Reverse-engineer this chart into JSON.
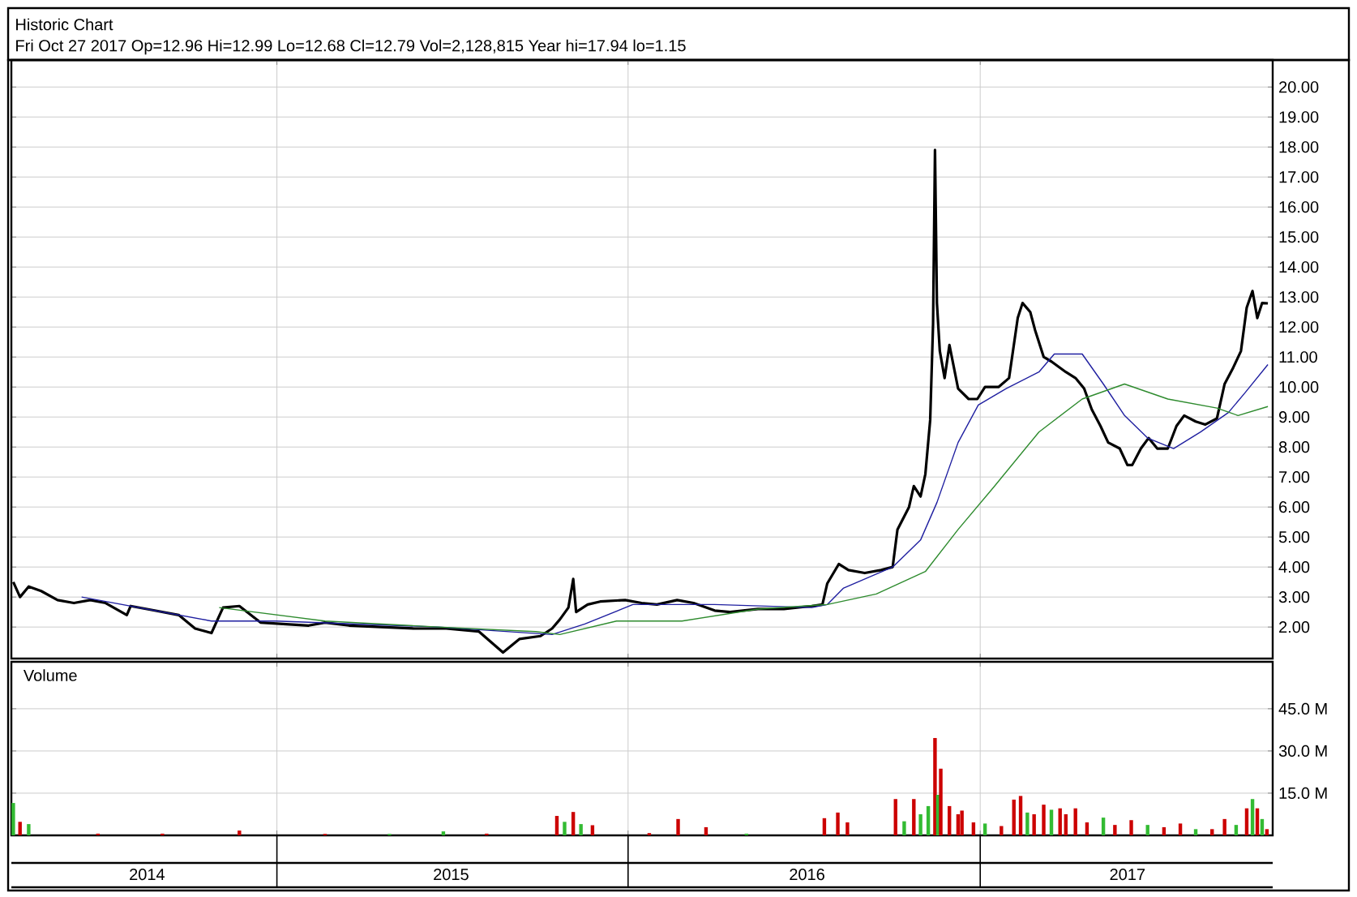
{
  "chart_data": [
    {
      "type": "line",
      "title": "Historic Chart",
      "subtitle": "Fri Oct 27 2017  Op=12.96  Hi=12.99  Lo=12.68  Cl=12.79  Vol=2,128,815  Year hi=17.94  lo=1.15",
      "xlim": [
        "2014-03-31",
        "2017-11-01"
      ],
      "ylim": [
        0.95,
        20.9
      ],
      "xticks": [
        {
          "value": "2015-01-01",
          "label": null
        },
        {
          "value": "2016-01-01",
          "label": null
        },
        {
          "value": "2017-01-01",
          "label": null
        }
      ],
      "yticks": [
        {
          "value": 2,
          "label": "2.00"
        },
        {
          "value": 3,
          "label": "3.00"
        },
        {
          "value": 4,
          "label": "4.00"
        },
        {
          "value": 5,
          "label": "5.00"
        },
        {
          "value": 6,
          "label": "6.00"
        },
        {
          "value": 7,
          "label": "7.00"
        },
        {
          "value": 8,
          "label": "8.00"
        },
        {
          "value": 9,
          "label": "9.00"
        },
        {
          "value": 10,
          "label": "10.00"
        },
        {
          "value": 11,
          "label": "11.00"
        },
        {
          "value": 12,
          "label": "12.00"
        },
        {
          "value": 13,
          "label": "13.00"
        },
        {
          "value": 14,
          "label": "14.00"
        },
        {
          "value": 15,
          "label": "15.00"
        },
        {
          "value": 16,
          "label": "16.00"
        },
        {
          "value": 17,
          "label": "17.00"
        },
        {
          "value": 18,
          "label": "18.00"
        },
        {
          "value": 19,
          "label": "19.00"
        },
        {
          "value": 20,
          "label": "20.00"
        }
      ],
      "tick_labels": "y",
      "grid": true,
      "series": [
        {
          "color": "#000000",
          "x": [
            "2014-04-02",
            "2014-04-09",
            "2014-04-18",
            "2014-05-01",
            "2014-05-18",
            "2014-06-04",
            "2014-06-21",
            "2014-07-07",
            "2014-07-29",
            "2014-08-02",
            "2014-08-27",
            "2014-09-21",
            "2014-10-08",
            "2014-10-25",
            "2014-11-06",
            "2014-11-23",
            "2014-12-15",
            "2015-01-09",
            "2015-02-03",
            "2015-02-20",
            "2015-03-17",
            "2015-04-20",
            "2015-05-24",
            "2015-06-26",
            "2015-07-30",
            "2015-08-24",
            "2015-09-10",
            "2015-10-02",
            "2015-10-14",
            "2015-10-22",
            "2015-10-31",
            "2015-11-05",
            "2015-11-08",
            "2015-11-20",
            "2015-12-03",
            "2015-12-29",
            "2016-01-15",
            "2016-01-31",
            "2016-02-21",
            "2016-03-09",
            "2016-03-31",
            "2016-04-16",
            "2016-05-15",
            "2016-06-11",
            "2016-07-10",
            "2016-07-21",
            "2016-07-26",
            "2016-08-07",
            "2016-08-17",
            "2016-09-03",
            "2016-09-20",
            "2016-10-02",
            "2016-10-07",
            "2016-10-19",
            "2016-10-24",
            "2016-10-31",
            "2016-11-05",
            "2016-11-10",
            "2016-11-13",
            "2016-11-15",
            "2016-11-17",
            "2016-11-20",
            "2016-11-25",
            "2016-11-30",
            "2016-12-09",
            "2016-12-20",
            "2016-12-29",
            "2017-01-06",
            "2017-01-20",
            "2017-01-31",
            "2017-02-09",
            "2017-02-14",
            "2017-02-22",
            "2017-02-27",
            "2017-03-08",
            "2017-03-16",
            "2017-03-31",
            "2017-04-10",
            "2017-04-19",
            "2017-04-27",
            "2017-05-06",
            "2017-05-14",
            "2017-05-26",
            "2017-06-03",
            "2017-06-08",
            "2017-06-17",
            "2017-06-25",
            "2017-07-04",
            "2017-07-15",
            "2017-07-24",
            "2017-08-01",
            "2017-08-13",
            "2017-08-23",
            "2017-09-04",
            "2017-09-12",
            "2017-09-21",
            "2017-09-29",
            "2017-10-05",
            "2017-10-11",
            "2017-10-16",
            "2017-10-21",
            "2017-10-27"
          ],
          "values": [
            3.5,
            3.0,
            3.35,
            3.2,
            2.9,
            2.8,
            2.9,
            2.8,
            2.4,
            2.7,
            2.55,
            2.4,
            1.95,
            1.8,
            2.65,
            2.7,
            2.15,
            2.1,
            2.05,
            2.15,
            2.05,
            2.0,
            1.95,
            1.95,
            1.85,
            1.15,
            1.6,
            1.7,
            1.95,
            2.25,
            2.65,
            3.6,
            2.5,
            2.75,
            2.85,
            2.9,
            2.8,
            2.75,
            2.9,
            2.8,
            2.55,
            2.5,
            2.6,
            2.6,
            2.7,
            2.75,
            3.45,
            4.1,
            3.9,
            3.8,
            3.9,
            4.0,
            5.25,
            6.0,
            6.7,
            6.35,
            7.1,
            8.9,
            12.1,
            17.9,
            12.8,
            11.2,
            10.3,
            11.4,
            9.95,
            9.6,
            9.6,
            10.0,
            10.0,
            10.3,
            12.3,
            12.8,
            12.5,
            11.9,
            11.0,
            10.85,
            10.5,
            10.3,
            9.95,
            9.25,
            8.7,
            8.15,
            7.95,
            7.4,
            7.4,
            7.95,
            8.3,
            7.95,
            7.95,
            8.7,
            9.05,
            8.85,
            8.75,
            8.95,
            10.1,
            10.65,
            11.2,
            12.65,
            13.2,
            12.3,
            12.8,
            12.79
          ]
        },
        {
          "color": "#1f1fa0",
          "x": [
            "2014-06-12",
            "2014-10-25",
            "2014-12-31",
            "2015-06-18",
            "2015-10-14",
            "2015-11-17",
            "2016-01-06",
            "2016-02-09",
            "2016-03-31",
            "2016-07-10",
            "2016-07-26",
            "2016-08-12",
            "2016-10-02",
            "2016-10-31",
            "2016-11-17",
            "2016-12-09",
            "2016-12-30",
            "2017-01-28",
            "2017-03-03",
            "2017-03-19",
            "2017-04-17",
            "2017-05-09",
            "2017-05-31",
            "2017-06-24",
            "2017-07-21",
            "2017-08-18",
            "2017-09-16",
            "2017-10-03",
            "2017-10-27"
          ],
          "values": [
            3.0,
            2.2,
            2.2,
            2.0,
            1.75,
            2.1,
            2.75,
            2.75,
            2.75,
            2.65,
            2.75,
            3.3,
            4.0,
            4.9,
            6.15,
            8.15,
            9.4,
            9.95,
            10.5,
            11.1,
            11.1,
            10.1,
            9.05,
            8.3,
            7.95,
            8.5,
            9.15,
            9.8,
            10.75
          ]
        },
        {
          "color": "#2e8b2e",
          "x": [
            "2014-11-02",
            "2015-02-20",
            "2015-06-18",
            "2015-09-27",
            "2015-10-22",
            "2015-12-20",
            "2016-02-26",
            "2016-05-15",
            "2016-07-26",
            "2016-09-15",
            "2016-11-05",
            "2016-12-09",
            "2017-01-16",
            "2017-03-03",
            "2017-04-17",
            "2017-05-31",
            "2017-07-15",
            "2017-09-04",
            "2017-09-26",
            "2017-10-27"
          ],
          "values": [
            2.65,
            2.2,
            2.0,
            1.85,
            1.75,
            2.2,
            2.2,
            2.6,
            2.75,
            3.1,
            3.85,
            5.25,
            6.7,
            8.5,
            9.6,
            10.1,
            9.6,
            9.3,
            9.05,
            9.35
          ]
        }
      ]
    },
    {
      "type": "bar",
      "title": "Volume",
      "xlim": [
        "2014-03-31",
        "2017-11-01"
      ],
      "ylim": [
        0,
        61.7
      ],
      "xticks": [
        {
          "value": "2015-01-01",
          "label": null
        },
        {
          "value": "2016-01-01",
          "label": null
        },
        {
          "value": "2017-01-01",
          "label": null
        },
        {
          "value": "2014-08-19",
          "label": "2014"
        },
        {
          "value": "2015-07-01",
          "label": "2015"
        },
        {
          "value": "2016-07-05",
          "label": "2016"
        },
        {
          "value": "2017-06-03",
          "label": "2017"
        }
      ],
      "yticks": [
        {
          "value": 15,
          "label": "15.0 M"
        },
        {
          "value": 30,
          "label": "30.0 M"
        },
        {
          "value": 45,
          "label": "45.0 M"
        }
      ],
      "grid": true,
      "x": [
        "2014-04-02",
        "2014-04-09",
        "2014-04-18",
        "2014-06-29",
        "2014-09-04",
        "2014-11-23",
        "2015-02-20",
        "2015-04-28",
        "2015-06-23",
        "2015-08-07",
        "2015-10-19",
        "2015-10-27",
        "2015-11-05",
        "2015-11-13",
        "2015-11-25",
        "2016-01-23",
        "2016-02-22",
        "2016-03-22",
        "2016-05-03",
        "2016-07-23",
        "2016-08-06",
        "2016-08-16",
        "2016-10-05",
        "2016-10-14",
        "2016-10-24",
        "2016-10-31",
        "2016-11-08",
        "2016-11-15",
        "2016-11-18",
        "2016-11-21",
        "2016-11-30",
        "2016-12-09",
        "2016-12-13",
        "2016-12-25",
        "2017-01-06",
        "2017-01-23",
        "2017-02-05",
        "2017-02-12",
        "2017-02-19",
        "2017-02-26",
        "2017-03-08",
        "2017-03-16",
        "2017-03-25",
        "2017-03-31",
        "2017-04-10",
        "2017-04-22",
        "2017-05-09",
        "2017-05-21",
        "2017-06-07",
        "2017-06-24",
        "2017-07-11",
        "2017-07-28",
        "2017-08-13",
        "2017-08-30",
        "2017-09-12",
        "2017-09-24",
        "2017-10-05",
        "2017-10-11",
        "2017-10-16",
        "2017-10-21",
        "2017-10-26"
      ],
      "values": [
        11.5,
        4.8,
        4.0,
        0.6,
        0.6,
        1.7,
        0.5,
        0.5,
        1.4,
        0.6,
        6.9,
        4.8,
        8.3,
        4.0,
        3.6,
        0.8,
        5.8,
        2.9,
        0.6,
        6.1,
        8.1,
        4.6,
        12.9,
        5.0,
        12.9,
        7.5,
        10.4,
        34.6,
        14.4,
        23.7,
        10.4,
        7.5,
        8.8,
        4.6,
        4.2,
        3.3,
        12.7,
        14.0,
        8.1,
        7.5,
        10.9,
        9.1,
        9.6,
        7.5,
        9.6,
        4.6,
        6.3,
        3.7,
        5.4,
        3.7,
        2.9,
        4.2,
        2.2,
        2.2,
        5.8,
        3.7,
        9.6,
        12.9,
        9.6,
        5.8,
        2.2
      ],
      "colors": [
        "#33bb33",
        "#cc0000",
        "#33bb33",
        "#cc0000",
        "#cc0000",
        "#cc0000",
        "#cc0000",
        "#33bb33",
        "#33bb33",
        "#cc0000",
        "#cc0000",
        "#33bb33",
        "#cc0000",
        "#33bb33",
        "#cc0000",
        "#cc0000",
        "#cc0000",
        "#cc0000",
        "#33bb33",
        "#cc0000",
        "#cc0000",
        "#cc0000",
        "#cc0000",
        "#33bb33",
        "#cc0000",
        "#33bb33",
        "#33bb33",
        "#cc0000",
        "#33bb33",
        "#cc0000",
        "#cc0000",
        "#cc0000",
        "#cc0000",
        "#cc0000",
        "#33bb33",
        "#cc0000",
        "#cc0000",
        "#cc0000",
        "#33bb33",
        "#cc0000",
        "#cc0000",
        "#33bb33",
        "#cc0000",
        "#cc0000",
        "#cc0000",
        "#cc0000",
        "#33bb33",
        "#cc0000",
        "#cc0000",
        "#33bb33",
        "#cc0000",
        "#cc0000",
        "#33bb33",
        "#cc0000",
        "#cc0000",
        "#33bb33",
        "#cc0000",
        "#33bb33",
        "#cc0000",
        "#33bb33",
        "#cc0000"
      ]
    }
  ]
}
